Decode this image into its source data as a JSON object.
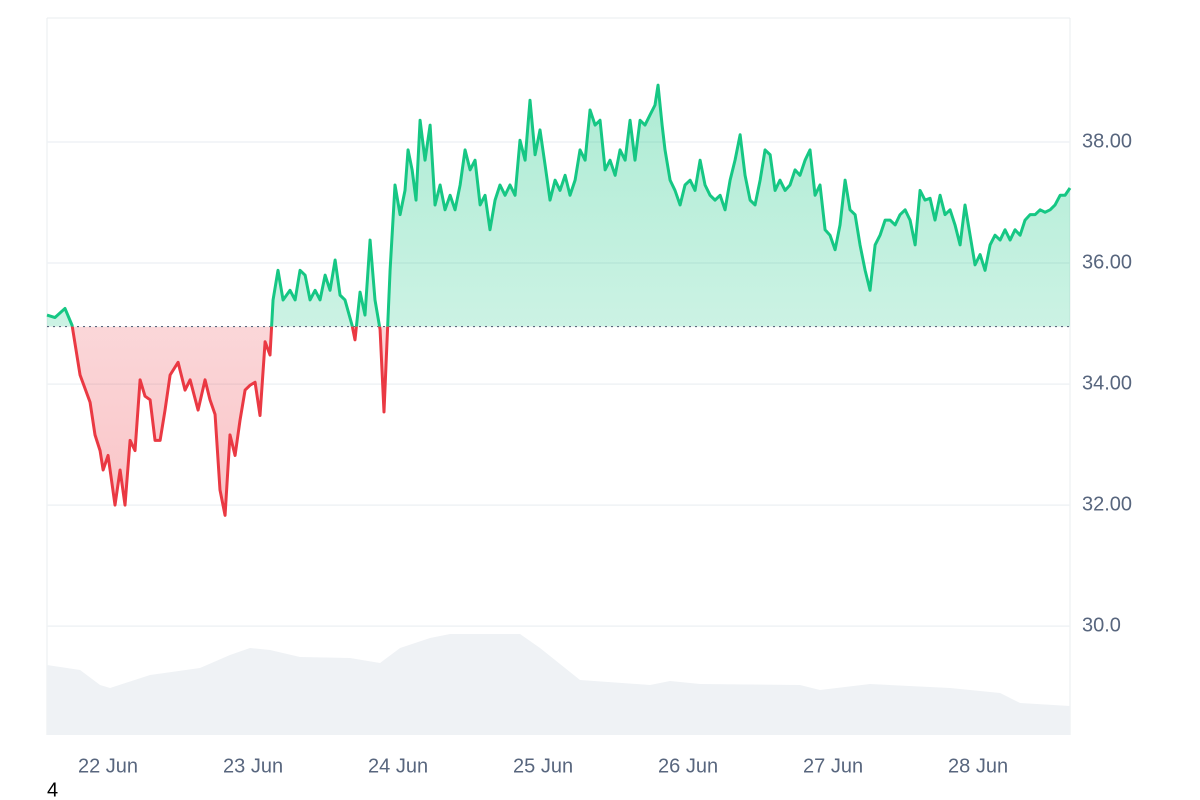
{
  "chart_data": {
    "type": "line",
    "baseline": 34.95,
    "up_color": "#16c784",
    "down_color": "#ea3943",
    "grid": true,
    "xlim": [
      -0.421,
      6.634
    ],
    "ylim": [
      28.2,
      40.05
    ],
    "xticks": [
      {
        "value": 0,
        "label": "22 Jun"
      },
      {
        "value": 1,
        "label": "23 Jun"
      },
      {
        "value": 2,
        "label": "24 Jun"
      },
      {
        "value": 3,
        "label": "25 Jun"
      },
      {
        "value": 4,
        "label": "26 Jun"
      },
      {
        "value": 5,
        "label": "27 Jun"
      },
      {
        "value": 6,
        "label": "28 Jun"
      }
    ],
    "yticks": [
      {
        "value": 38,
        "label": "38.00"
      },
      {
        "value": 36,
        "label": "36.00"
      },
      {
        "value": 34,
        "label": "34.00"
      },
      {
        "value": 32,
        "label": "32.00"
      },
      {
        "value": 30,
        "label": "30.0"
      }
    ],
    "footnote": "4",
    "x": [
      -0.421,
      -0.366,
      -0.297,
      -0.248,
      -0.193,
      -0.124,
      -0.09,
      -0.055,
      -0.034,
      0,
      0.048,
      0.083,
      0.117,
      0.152,
      0.186,
      0.221,
      0.255,
      0.29,
      0.324,
      0.359,
      0.393,
      0.428,
      0.483,
      0.531,
      0.566,
      0.621,
      0.669,
      0.703,
      0.738,
      0.772,
      0.807,
      0.841,
      0.876,
      0.91,
      0.945,
      0.979,
      1.014,
      1.048,
      1.083,
      1.117,
      1.138,
      1.172,
      1.207,
      1.255,
      1.29,
      1.324,
      1.359,
      1.393,
      1.428,
      1.462,
      1.497,
      1.531,
      1.566,
      1.6,
      1.634,
      1.683,
      1.703,
      1.738,
      1.772,
      1.807,
      1.841,
      1.876,
      1.903,
      1.945,
      1.979,
      2.014,
      2.048,
      2.069,
      2.097,
      2.124,
      2.152,
      2.186,
      2.221,
      2.255,
      2.29,
      2.324,
      2.359,
      2.393,
      2.428,
      2.462,
      2.497,
      2.531,
      2.566,
      2.6,
      2.634,
      2.669,
      2.703,
      2.738,
      2.772,
      2.807,
      2.841,
      2.876,
      2.91,
      2.945,
      2.979,
      3.014,
      3.048,
      3.083,
      3.117,
      3.152,
      3.186,
      3.221,
      3.255,
      3.29,
      3.324,
      3.359,
      3.393,
      3.428,
      3.462,
      3.497,
      3.531,
      3.566,
      3.6,
      3.634,
      3.669,
      3.703,
      3.738,
      3.772,
      3.793,
      3.821,
      3.841,
      3.876,
      3.91,
      3.945,
      3.979,
      4.014,
      4.048,
      4.083,
      4.117,
      4.152,
      4.186,
      4.221,
      4.255,
      4.29,
      4.324,
      4.359,
      4.393,
      4.428,
      4.462,
      4.497,
      4.531,
      4.566,
      4.6,
      4.634,
      4.669,
      4.703,
      4.738,
      4.772,
      4.807,
      4.841,
      4.876,
      4.91,
      4.945,
      4.979,
      5.014,
      5.048,
      5.083,
      5.117,
      5.152,
      5.186,
      5.221,
      5.255,
      5.29,
      5.324,
      5.359,
      5.393,
      5.428,
      5.462,
      5.497,
      5.531,
      5.566,
      5.6,
      5.634,
      5.669,
      5.703,
      5.738,
      5.772,
      5.807,
      5.841,
      5.876,
      5.91,
      5.945,
      5.979,
      6.014,
      6.048,
      6.083,
      6.117,
      6.152,
      6.186,
      6.221,
      6.255,
      6.29,
      6.324,
      6.359,
      6.393,
      6.428,
      6.462,
      6.497,
      6.531,
      6.566,
      6.6,
      6.634
    ],
    "values": [
      35.14,
      35.1,
      35.25,
      34.97,
      34.15,
      33.7,
      33.16,
      32.9,
      32.58,
      32.82,
      32.0,
      32.58,
      32.0,
      33.07,
      32.9,
      34.07,
      33.8,
      33.74,
      33.07,
      33.07,
      33.57,
      34.15,
      34.36,
      33.9,
      34.07,
      33.57,
      34.07,
      33.74,
      33.5,
      32.25,
      31.83,
      33.16,
      32.82,
      33.4,
      33.9,
      33.98,
      34.03,
      33.48,
      34.7,
      34.48,
      35.39,
      35.88,
      35.39,
      35.55,
      35.39,
      35.88,
      35.8,
      35.39,
      35.55,
      35.39,
      35.8,
      35.55,
      36.05,
      35.47,
      35.39,
      34.97,
      34.73,
      35.52,
      35.14,
      36.38,
      35.39,
      34.9,
      33.54,
      35.88,
      37.29,
      36.8,
      37.2,
      37.87,
      37.54,
      37.04,
      38.36,
      37.7,
      38.28,
      36.96,
      37.29,
      36.88,
      37.12,
      36.88,
      37.29,
      37.87,
      37.54,
      37.7,
      36.96,
      37.12,
      36.55,
      37.04,
      37.29,
      37.12,
      37.29,
      37.12,
      38.03,
      37.7,
      38.69,
      37.79,
      38.2,
      37.62,
      37.04,
      37.37,
      37.2,
      37.45,
      37.12,
      37.37,
      37.87,
      37.7,
      38.53,
      38.28,
      38.36,
      37.54,
      37.7,
      37.45,
      37.87,
      37.7,
      38.36,
      37.7,
      38.36,
      38.28,
      38.45,
      38.61,
      38.94,
      38.28,
      37.87,
      37.37,
      37.2,
      36.96,
      37.29,
      37.37,
      37.2,
      37.7,
      37.29,
      37.12,
      37.04,
      37.12,
      36.88,
      37.37,
      37.7,
      38.12,
      37.45,
      37.04,
      36.96,
      37.37,
      37.87,
      37.79,
      37.2,
      37.37,
      37.2,
      37.29,
      37.54,
      37.45,
      37.7,
      37.87,
      37.12,
      37.29,
      36.55,
      36.46,
      36.22,
      36.63,
      37.37,
      36.88,
      36.8,
      36.3,
      35.88,
      35.55,
      36.3,
      36.46,
      36.71,
      36.71,
      36.63,
      36.8,
      36.88,
      36.71,
      36.3,
      37.2,
      37.04,
      37.07,
      36.71,
      37.12,
      36.8,
      36.88,
      36.63,
      36.3,
      36.96,
      36.46,
      35.97,
      36.14,
      35.88,
      36.3,
      36.46,
      36.38,
      36.55,
      36.38,
      36.55,
      36.46,
      36.71,
      36.8,
      36.8,
      36.88,
      36.84,
      36.88,
      36.96,
      37.12,
      37.12,
      37.24
    ],
    "volume": {
      "color": "#eff2f5",
      "y2lim": [
        0,
        120
      ],
      "x": [
        -0.421,
        -0.193,
        -0.055,
        0.014,
        0.29,
        0.634,
        0.841,
        0.979,
        1.117,
        1.324,
        1.669,
        1.876,
        2.014,
        2.221,
        2.359,
        2.841,
        2.979,
        3.186,
        3.255,
        3.738,
        3.876,
        4.083,
        4.772,
        4.91,
        5.255,
        5.807,
        6.152,
        6.29,
        6.634
      ],
      "values": [
        70,
        65,
        50,
        47,
        60,
        67,
        80,
        87,
        85,
        78,
        77,
        72,
        87,
        97,
        101,
        101,
        87,
        63,
        55,
        50,
        54,
        51,
        50,
        45,
        51,
        47,
        42,
        32,
        29
      ]
    }
  }
}
